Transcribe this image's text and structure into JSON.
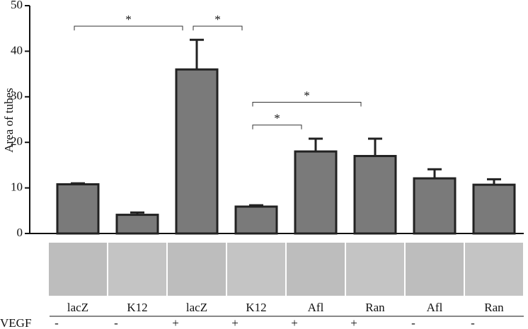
{
  "chart_data": {
    "type": "bar",
    "y_label": "Area of tubes",
    "categories": [
      "lacZ",
      "K12",
      "lacZ",
      "K12",
      "Afl",
      "Ran",
      "Afl",
      "Ran"
    ],
    "values": [
      10.8,
      4.1,
      36,
      5.9,
      18,
      17,
      12.1,
      10.7
    ],
    "errors": [
      0.2,
      0.5,
      6.5,
      0.3,
      2.8,
      3.8,
      2,
      1.2
    ],
    "color": "#7a7a7a",
    "ylim": [
      0,
      50
    ],
    "yticks": [
      0,
      10,
      20,
      30,
      40,
      50
    ],
    "condition_label": "VEGF",
    "condition": [
      "-",
      "-",
      "+",
      "+",
      "+",
      "+",
      "-",
      "-"
    ],
    "comparisons": [
      {
        "pair": [
          0,
          2
        ],
        "label": "*"
      },
      {
        "pair": [
          2,
          3
        ],
        "label": "*"
      },
      {
        "pair": [
          3,
          4
        ],
        "label": "*"
      },
      {
        "pair": [
          3,
          5
        ],
        "label": "*"
      }
    ]
  }
}
